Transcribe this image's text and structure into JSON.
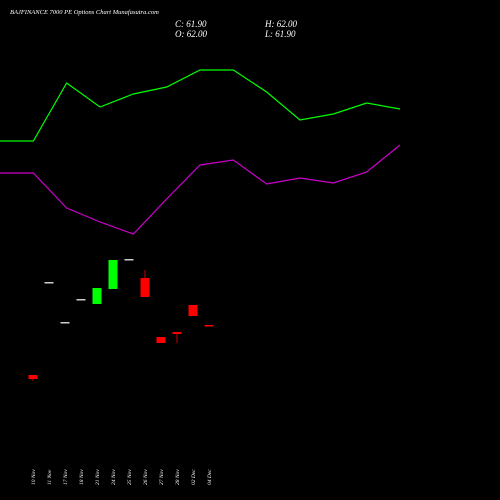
{
  "chart_data": [
    {
      "type": "candlestick",
      "title": "BAJFINANCE 7000 PE Options Chart Munafasutra.com",
      "ohlc_labels": [
        "C: 61.90",
        "O: 62.00",
        "H: 62.00",
        "L: 61.90"
      ],
      "categories": [
        "10 Nov",
        "11 Nov",
        "17 Nov",
        "18 Nov",
        "21 Nov",
        "24 Nov",
        "25 Nov",
        "26 Nov",
        "27 Nov",
        "28 Nov",
        "02 Dec",
        "04 Dec"
      ],
      "open": [
        49.5,
        72.75,
        62.75,
        68.5,
        67.25,
        71,
        78.5,
        73.75,
        59,
        60.25,
        67,
        62
      ],
      "high": [
        49.5,
        72.75,
        62.75,
        68.5,
        71.25,
        78.25,
        78.5,
        75.75,
        59,
        60.25,
        67,
        62
      ],
      "low": [
        48,
        72.75,
        62.75,
        68.5,
        67.25,
        71,
        78.5,
        69,
        57.5,
        57.5,
        64.25,
        61.9
      ],
      "close": [
        48.5,
        72.75,
        62.75,
        68.5,
        71.25,
        78.25,
        78.5,
        69,
        57.5,
        59.75,
        64.25,
        61.9
      ],
      "ylim": [
        18.25,
        143.25
      ],
      "up_color": "#00ff00",
      "down_color": "#ff0000",
      "flat_color": "#cccccc"
    },
    {
      "type": "line",
      "x": [
        0,
        1,
        2,
        3,
        4,
        5,
        6,
        7,
        8,
        9,
        10,
        11,
        12
      ],
      "xlim": [
        0,
        15
      ],
      "ylim": [
        18.25,
        143.25
      ],
      "series": [
        {
          "color": "#00ff00",
          "values": [
            108,
            108,
            122.5,
            116.5,
            119.75,
            121.5,
            125.75,
            125.75,
            120.25,
            113.25,
            114.75,
            117.5,
            116
          ]
        },
        {
          "color": "#cc00cc",
          "values": [
            100,
            100,
            91.25,
            87.75,
            84.75,
            93.5,
            102,
            103.25,
            97.25,
            98.75,
            97.5,
            100.25,
            107
          ]
        }
      ]
    }
  ]
}
